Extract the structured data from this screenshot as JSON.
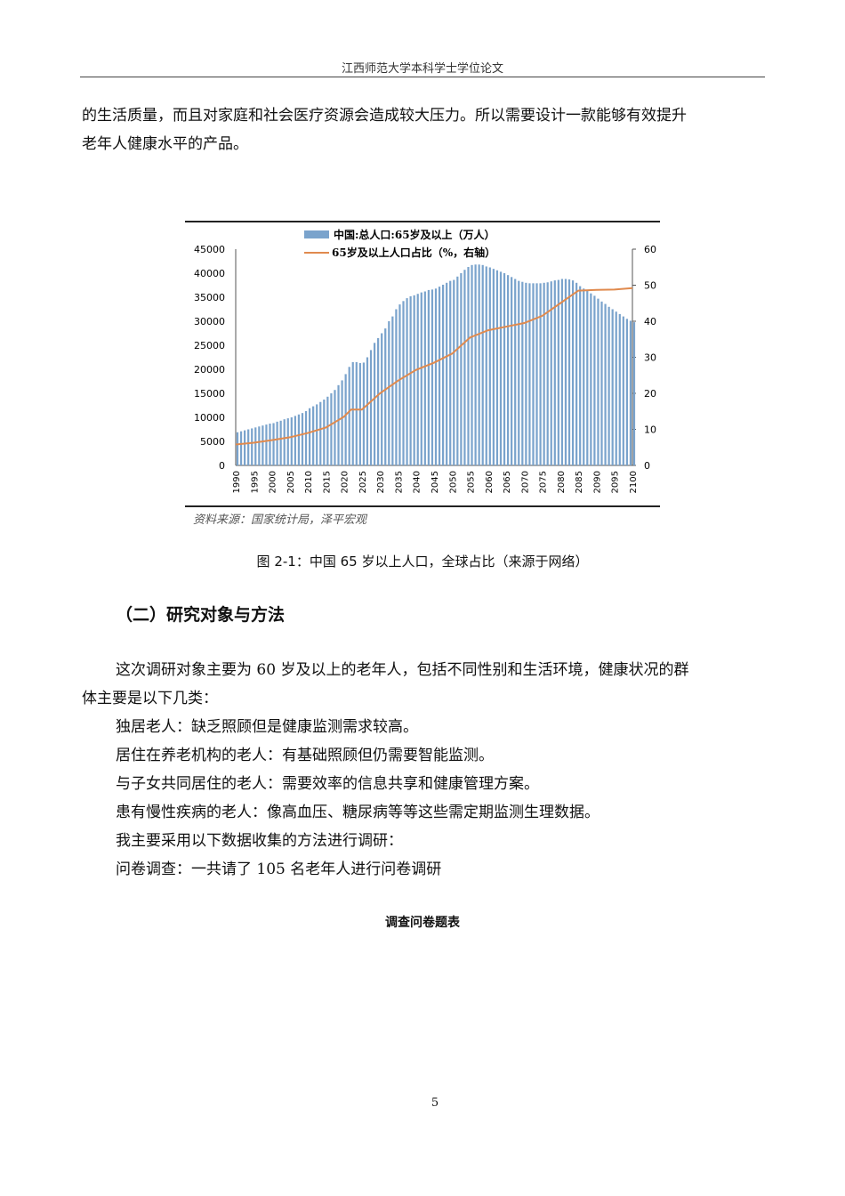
{
  "header": "江西师范大学本科学士学位论文",
  "para1": "的生活质量，而且对家庭和社会医疗资源会造成较大压力。所以需要设计一款能够有效提升",
  "para1b": "老年人健康水平的产品。",
  "figure_caption": "图 2-1：中国 65 岁以上人口，全球占比（来源于网络）",
  "section_title": "（二）研究对象与方法",
  "para2a": "这次调研对象主要为 60 岁及以上的老年人，包括不同性别和生活环境，健康状况的群",
  "para2b": "体主要是以下几类：",
  "items": [
    "独居老人：缺乏照顾但是健康监测需求较高。",
    "居住在养老机构的老人：有基础照顾但仍需要智能监测。",
    "与子女共同居住的老人：需要效率的信息共享和健康管理方案。",
    "患有慢性疾病的老人：像高血压、糖尿病等等这些需定期监测生理数据。",
    "我主要采用以下数据收集的方法进行调研：",
    "问卷调查：一共请了 105 名老年人进行问卷调研"
  ],
  "table_title": "调查问卷题表",
  "page_number": "5",
  "chart_data": {
    "type": "bar+line",
    "source": "资料来源：国家统计局，泽平宏观",
    "legend": "top",
    "colors": {
      "bar": "#7aa3cc",
      "line": "#e08a4e"
    },
    "left_axis": {
      "ylim": [
        0,
        45000
      ],
      "ticks": [
        "0",
        "5000",
        "10000",
        "15000",
        "20000",
        "25000",
        "30000",
        "35000",
        "40000",
        "45000"
      ]
    },
    "right_axis": {
      "ylim": [
        0,
        60
      ],
      "ticks": [
        "0",
        "10",
        "20",
        "30",
        "40",
        "50",
        "60"
      ]
    },
    "x_ticks": [
      "1990",
      "1995",
      "2000",
      "2005",
      "2010",
      "2015",
      "2020",
      "2025",
      "2030",
      "2035",
      "2040",
      "2045",
      "2050",
      "2055",
      "2060",
      "2065",
      "2070",
      "2075",
      "2080",
      "2085",
      "2090",
      "2095",
      "2100"
    ],
    "series": [
      {
        "name": "中国:总人口:65岁及以上（万人）",
        "type": "bar",
        "x_start": 1990,
        "values": [
          6900,
          7100,
          7300,
          7500,
          7700,
          7900,
          8100,
          8300,
          8500,
          8700,
          8800,
          9100,
          9300,
          9600,
          9800,
          10000,
          10300,
          10600,
          10900,
          11300,
          11900,
          12300,
          12700,
          13200,
          13700,
          14300,
          15000,
          15700,
          16700,
          17700,
          19000,
          20500,
          21500,
          21500,
          21300,
          21400,
          22500,
          24000,
          25500,
          26500,
          27500,
          28500,
          30000,
          31000,
          32500,
          33500,
          34200,
          34800,
          35200,
          35400,
          35700,
          36000,
          36200,
          36500,
          36600,
          36800,
          37200,
          37600,
          38000,
          38400,
          38600,
          39300,
          40000,
          40700,
          41300,
          41700,
          41800,
          41800,
          41700,
          41400,
          41200,
          40900,
          40600,
          40300,
          40000,
          39600,
          39200,
          38800,
          38400,
          38200,
          38000,
          37900,
          37900,
          37900,
          37900,
          38000,
          38100,
          38300,
          38500,
          38600,
          38800,
          38800,
          38700,
          38500,
          38000,
          37300,
          36800,
          36300,
          35800,
          35300,
          34700,
          34100,
          33600,
          33000,
          32500,
          32000,
          31500,
          31000,
          30500,
          30100,
          29800
        ]
      },
      {
        "name": "65岁及以上人口占比（%，右轴）",
        "type": "line",
        "x": [
          1990,
          1995,
          2000,
          2005,
          2010,
          2015,
          2020,
          2022,
          2025,
          2030,
          2035,
          2040,
          2045,
          2050,
          2055,
          2060,
          2065,
          2070,
          2075,
          2080,
          2085,
          2090,
          2095,
          2100
        ],
        "values": [
          5.8,
          6.3,
          7.0,
          7.8,
          9.0,
          10.5,
          13.5,
          15.5,
          15.5,
          20,
          23.5,
          26.5,
          28.5,
          31,
          35.5,
          37.5,
          38.5,
          39.5,
          41.5,
          45,
          48.5,
          48.7,
          48.8,
          49.2
        ]
      }
    ]
  }
}
